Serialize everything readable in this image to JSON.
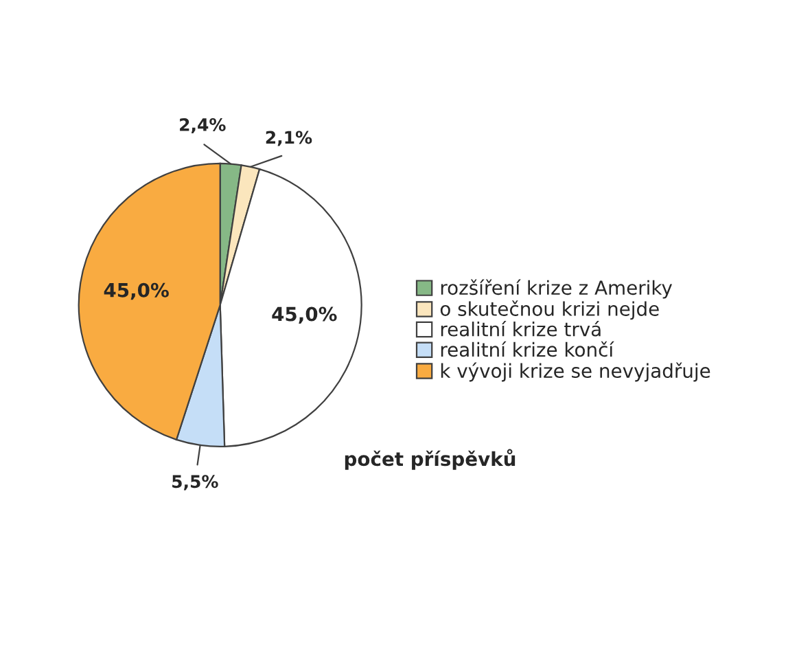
{
  "chart_data": {
    "type": "pie",
    "title": "počet příspěvků",
    "categories": [
      "rozšíření krize z Ameriky",
      "o skutečnou krizi nejde",
      "realitní krize trvá",
      "realitní krize končí",
      "k vývoji krize se nevyjadřuje"
    ],
    "values": [
      2.4,
      2.1,
      45.0,
      5.5,
      45.0
    ],
    "value_labels": [
      "2,4%",
      "2,1%",
      "45,0%",
      "5,5%",
      "45,0%"
    ],
    "colors": [
      "#86b886",
      "#fbe6bd",
      "#ffffff",
      "#c5def7",
      "#f9ab41"
    ],
    "legend": "right"
  }
}
